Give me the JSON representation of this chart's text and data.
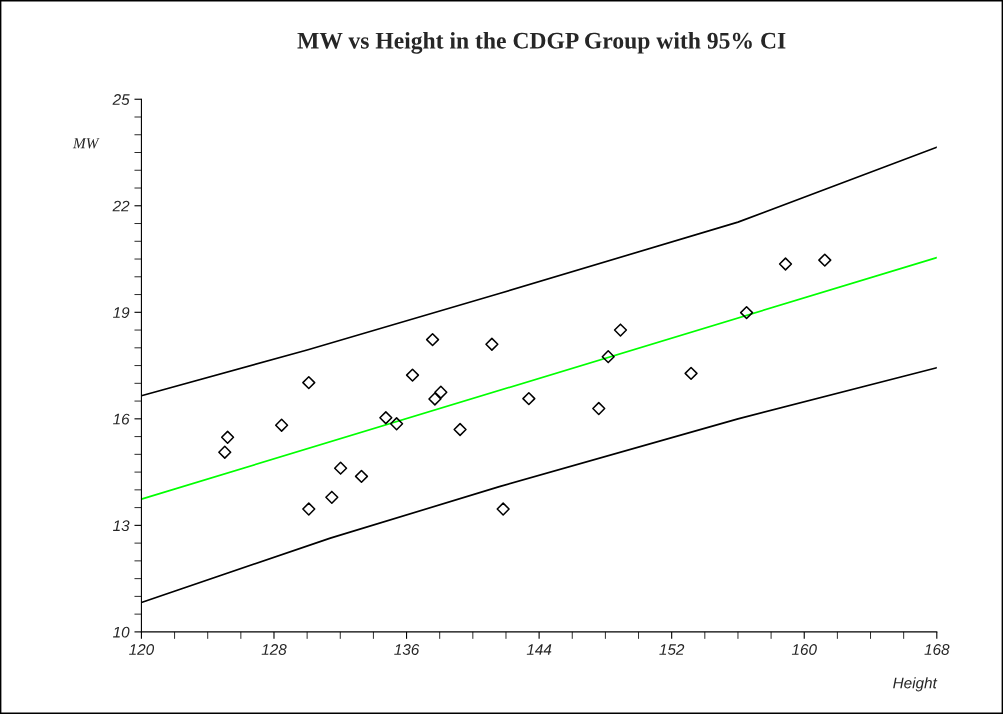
{
  "chart_data": {
    "type": "scatter",
    "title": "MW vs Height in the CDGP Group with 95% CI",
    "xlabel": "Height",
    "ylabel": "MW",
    "xlim": [
      120,
      168
    ],
    "xticks": [
      120,
      128,
      136,
      144,
      152,
      160,
      168
    ],
    "ylim": [
      10,
      25
    ],
    "yticks": [
      10,
      13,
      16,
      19,
      22,
      25
    ],
    "grid": false,
    "legend": false,
    "series": [
      {
        "marker": "diamond",
        "color": "#000000",
        "x": [
          125.03,
          125.2,
          128.46,
          130.1,
          130.1,
          131.49,
          132.02,
          133.28,
          134.75,
          135.4,
          136.36,
          137.57,
          137.71,
          138.07,
          139.23,
          141.15,
          141.83,
          143.38,
          147.6,
          148.17,
          148.91,
          153.17,
          156.52,
          158.87,
          161.24
        ],
        "values": [
          15.06,
          15.48,
          15.82,
          17.02,
          13.46,
          13.79,
          14.61,
          14.38,
          16.03,
          15.86,
          17.23,
          18.23,
          16.56,
          16.75,
          15.7,
          18.1,
          13.46,
          16.57,
          16.29,
          17.75,
          18.5,
          17.28,
          18.99,
          20.36,
          20.47
        ]
      },
      {
        "type": "line",
        "color": "#00ff00",
        "x": [
          120,
          168
        ],
        "values": [
          13.74,
          20.54
        ]
      },
      {
        "type": "line",
        "color": "#000000",
        "x": [
          120,
          130,
          141.6,
          156,
          168
        ],
        "values": [
          16.65,
          17.94,
          19.53,
          21.54,
          23.65
        ]
      },
      {
        "type": "line",
        "color": "#000000",
        "x": [
          120,
          131.4,
          141.6,
          156,
          168
        ],
        "values": [
          10.83,
          12.64,
          14.09,
          16.0,
          17.44
        ]
      }
    ]
  }
}
